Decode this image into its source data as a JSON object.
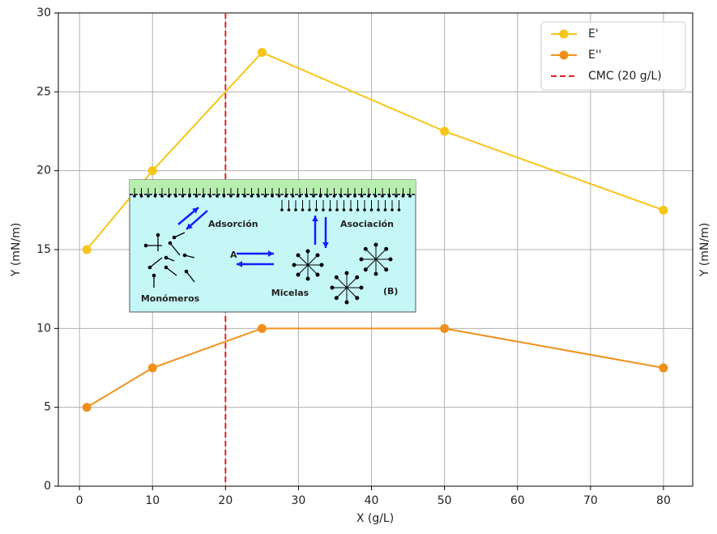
{
  "chart_data": {
    "type": "line",
    "xlabel": "X (g/L)",
    "ylabel": "Y (mN/m)",
    "y2label": "Y (mN/m)",
    "x": [
      1,
      10,
      25,
      50,
      80
    ],
    "series": [
      {
        "name": "E'",
        "color": "#f5c518",
        "values": [
          15,
          20,
          27.5,
          22.5,
          17.5
        ]
      },
      {
        "name": "E''",
        "color": "#f0901a",
        "values": [
          5,
          7.5,
          10,
          10,
          7.5
        ]
      }
    ],
    "vlines": [
      {
        "name": "CMC (20 g/L)",
        "x": 20,
        "color": "#d62728"
      }
    ],
    "xlim": [
      -2.9,
      84
    ],
    "ylim": [
      0,
      30
    ],
    "xticks": [
      0,
      10,
      20,
      30,
      40,
      50,
      60,
      70,
      80
    ],
    "yticks": [
      0,
      5,
      10,
      15,
      20,
      25,
      30
    ],
    "grid": true,
    "legend": "upper right",
    "inset": {
      "labels": [
        "Adsorción",
        "Asociación",
        "A",
        "Monómeros",
        "Micelas",
        "(B)"
      ]
    }
  }
}
